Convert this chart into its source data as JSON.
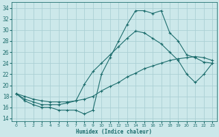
{
  "xlabel": "Humidex (Indice chaleur)",
  "bg_color": "#cce8ea",
  "grid_color": "#aacfd4",
  "line_color": "#1a6b6b",
  "xlim": [
    -0.5,
    23.5
  ],
  "ylim": [
    13.5,
    35.0
  ],
  "xticks": [
    0,
    1,
    2,
    3,
    4,
    5,
    6,
    7,
    8,
    9,
    10,
    11,
    12,
    13,
    14,
    15,
    16,
    17,
    18,
    19,
    20,
    21,
    22,
    23
  ],
  "yticks": [
    14,
    16,
    18,
    20,
    22,
    24,
    26,
    28,
    30,
    32,
    34
  ],
  "line1_x": [
    0,
    1,
    2,
    3,
    4,
    5,
    6,
    7,
    8,
    9,
    10,
    11,
    12,
    13,
    14,
    15,
    16,
    17,
    18,
    19,
    20,
    21,
    22,
    23
  ],
  "line1_y": [
    18.5,
    17.2,
    16.5,
    16.0,
    16.0,
    15.5,
    15.5,
    15.5,
    14.8,
    15.5,
    22.0,
    25.0,
    28.0,
    31.0,
    33.5,
    33.5,
    33.0,
    33.5,
    29.5,
    28.0,
    25.5,
    25.0,
    24.2,
    24.0
  ],
  "line2_x": [
    0,
    1,
    2,
    3,
    4,
    5,
    6,
    7,
    8,
    9,
    10,
    11,
    12,
    13,
    14,
    15,
    16,
    17,
    18,
    19,
    20,
    21,
    22,
    23
  ],
  "line2_y": [
    18.5,
    18.0,
    17.5,
    17.2,
    17.0,
    17.0,
    17.0,
    17.2,
    17.5,
    18.0,
    19.0,
    19.8,
    20.5,
    21.5,
    22.2,
    23.0,
    23.5,
    24.0,
    24.5,
    24.8,
    25.0,
    25.2,
    25.0,
    24.5
  ],
  "line3_x": [
    0,
    1,
    2,
    3,
    4,
    5,
    6,
    7,
    8,
    9,
    10,
    11,
    12,
    13,
    14,
    15,
    16,
    17,
    18,
    19,
    20,
    21,
    22,
    23
  ],
  "line3_y": [
    18.5,
    17.5,
    17.0,
    16.5,
    16.5,
    16.5,
    16.8,
    17.2,
    20.2,
    22.5,
    24.0,
    25.5,
    27.0,
    28.5,
    29.8,
    29.5,
    28.5,
    27.5,
    26.0,
    24.5,
    22.0,
    20.5,
    22.0,
    24.0
  ]
}
